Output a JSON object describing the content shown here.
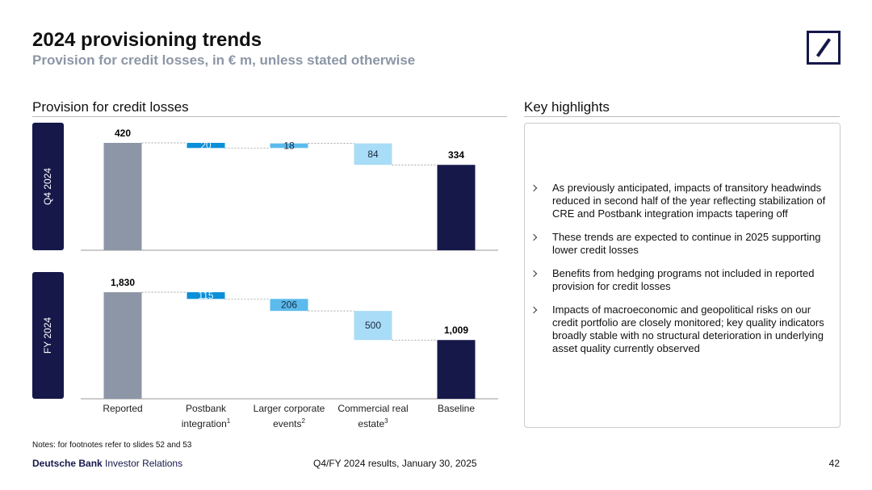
{
  "header": {
    "title": "2024 provisioning trends",
    "subtitle": "Provision for credit losses, in € m, unless stated otherwise"
  },
  "section_title": "Provision for credit losses",
  "chart_data": [
    {
      "type": "waterfall",
      "panel_label": "Q4 2024",
      "values": [
        420,
        -20,
        18,
        -84,
        334
      ],
      "value_labels": [
        "420",
        "20",
        "18",
        "84",
        "334"
      ],
      "colors": [
        "#8c96a6",
        "#0a8fd8",
        "#5bbbec",
        "#a9dcf6",
        "#16184a"
      ]
    },
    {
      "type": "waterfall",
      "panel_label": "FY 2024",
      "categories": [
        "Reported",
        "Postbank integration",
        "Larger corporate events",
        "Commercial real estate",
        "Baseline"
      ],
      "category_notes": [
        null,
        "1",
        "2",
        "3",
        null
      ],
      "values": [
        1830,
        -115,
        -206,
        -500,
        1009
      ],
      "value_labels": [
        "1,830",
        "115",
        "206",
        "500",
        "1,009"
      ],
      "colors": [
        "#8c96a6",
        "#0a8fd8",
        "#5bbbec",
        "#a9dcf6",
        "#16184a"
      ]
    }
  ],
  "highlights": {
    "title": "Key highlights",
    "items": [
      "As previously anticipated, impacts of transitory headwinds reduced in second half of the year reflecting stabilization of CRE and Postbank integration impacts tapering off",
      "These trends are expected to continue in 2025 supporting lower credit losses",
      "Benefits from hedging programs not included in reported provision for credit losses",
      "Impacts of macroeconomic and geopolitical risks on our credit portfolio are closely monitored; key quality indicators broadly stable with no structural deterioration in underlying asset quality currently observed"
    ]
  },
  "footer": {
    "note": "Notes: for footnotes refer to slides 52 and 53",
    "brand": "Deutsche Bank",
    "brand_suffix": "Investor Relations",
    "center": "Q4/FY 2024 results, January 30, 2025",
    "page": "42"
  }
}
